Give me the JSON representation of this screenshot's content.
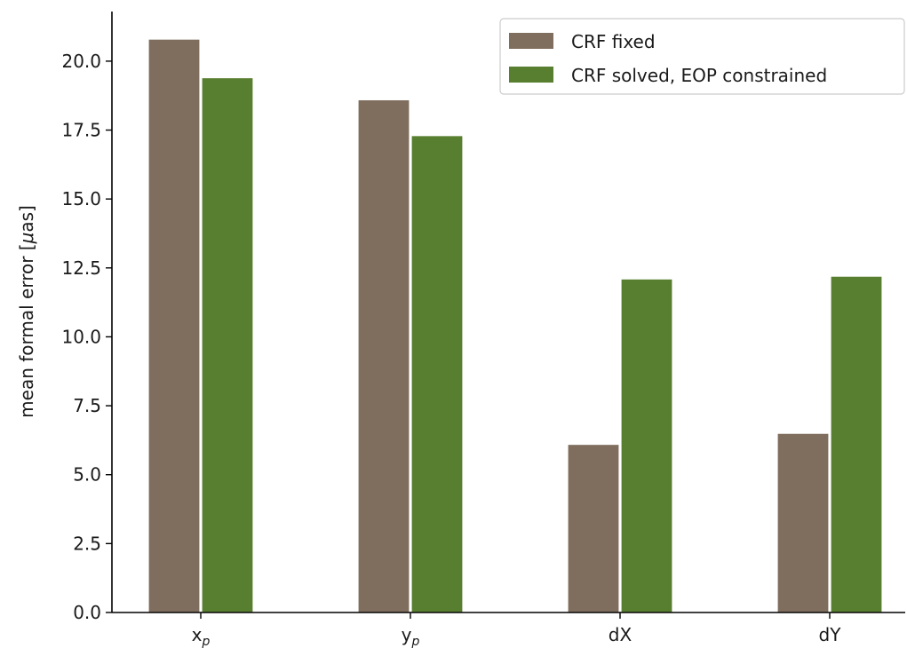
{
  "chart_data": {
    "type": "bar",
    "title": "",
    "xlabel": "",
    "ylabel": "mean formal error [μas]",
    "ylabel_parts": {
      "pre": "mean formal error [",
      "mu": "μ",
      "post": "as]"
    },
    "ylim": [
      0,
      21.8
    ],
    "yticks": [
      0.0,
      2.5,
      5.0,
      7.5,
      10.0,
      12.5,
      15.0,
      17.5,
      20.0
    ],
    "categories": [
      {
        "main": "x",
        "sub": "p"
      },
      {
        "main": "y",
        "sub": "p"
      },
      {
        "main": "dX",
        "sub": ""
      },
      {
        "main": "dY",
        "sub": ""
      }
    ],
    "series": [
      {
        "name": "CRF fixed",
        "color": "#7f6e5d",
        "values": [
          20.8,
          18.6,
          6.1,
          6.5
        ]
      },
      {
        "name": "CRF solved, EOP constrained",
        "color": "#587e2f",
        "values": [
          19.4,
          17.3,
          12.1,
          12.2
        ]
      }
    ],
    "grid": false,
    "legend_position": "top-right"
  }
}
